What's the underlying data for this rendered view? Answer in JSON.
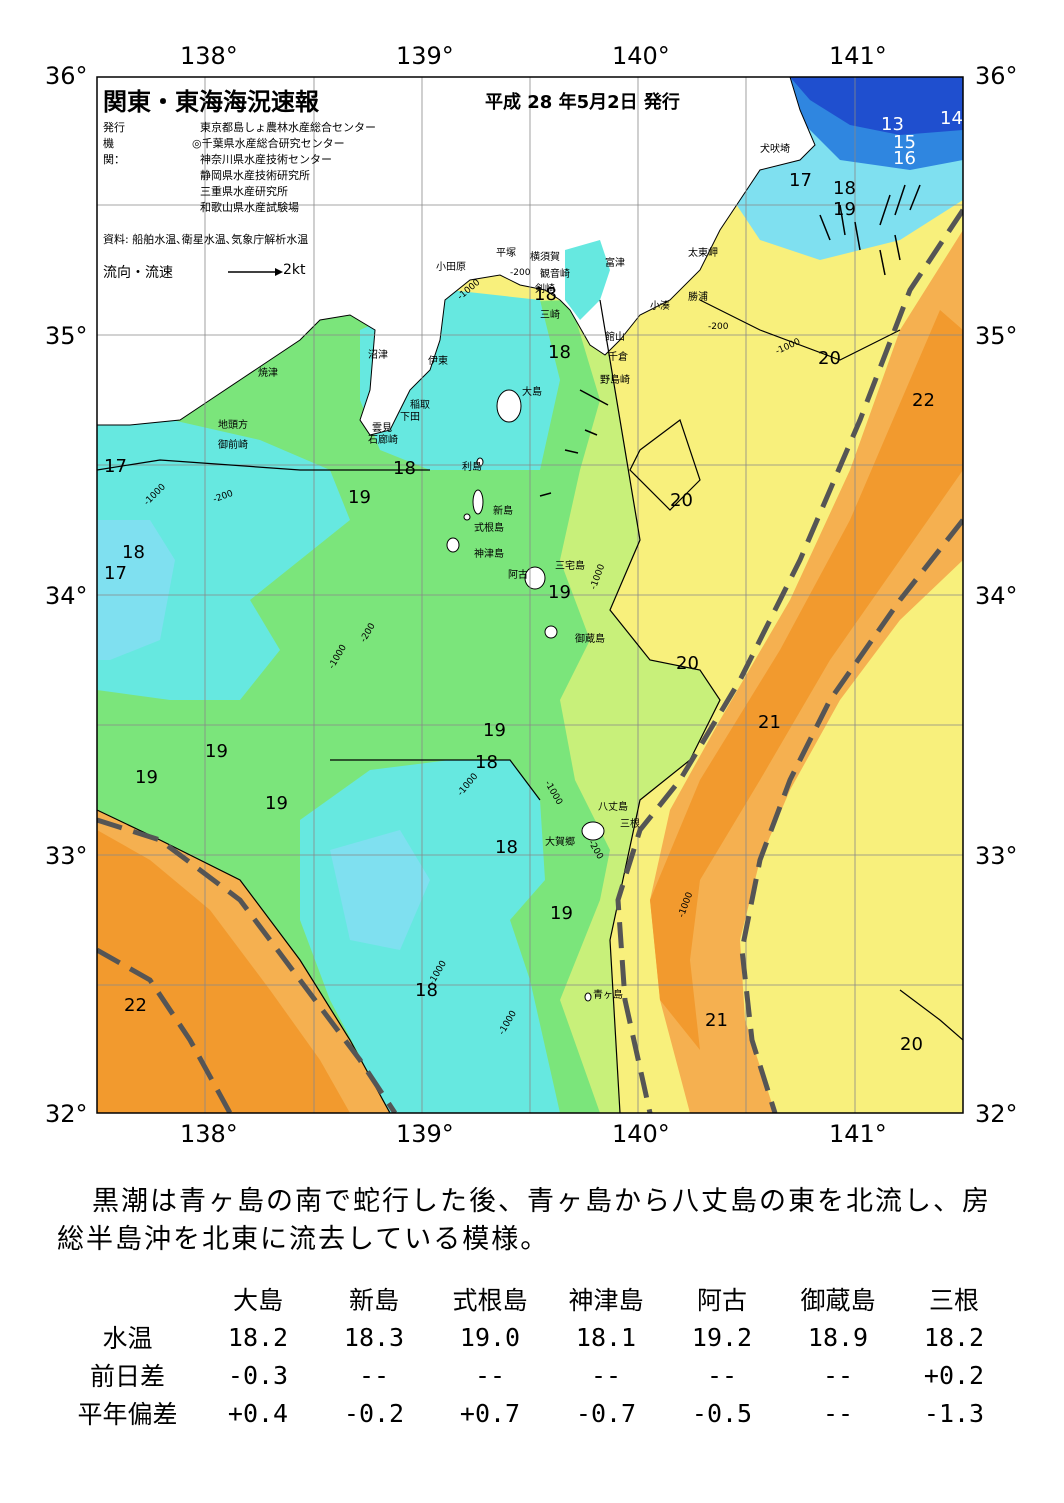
{
  "map": {
    "title": "関東・東海海況速報",
    "issue_date": "平成 28 年5月2日 発行",
    "publisher_label": "発行機関：",
    "publishers": [
      "東京都島しょ農林水産総合センター",
      "◎千葉県水産総合研究センター",
      "神奈川県水産技術センター",
      "静岡県水産技術研究所",
      "三重県水産研究所",
      "和歌山県水産試験場"
    ],
    "sources": "資料: 船舶水温､衛星水温､気象庁解析水温",
    "flow_legend_label": "流向・流速",
    "flow_legend_scale": "2kt",
    "lat_labels": [
      "36°",
      "35°",
      "34°",
      "33°",
      "32°"
    ],
    "lon_labels": [
      "138°",
      "139°",
      "140°",
      "141°"
    ],
    "place_names": [
      {
        "name": "犬吠埼"
      },
      {
        "name": "太東岬"
      },
      {
        "name": "勝浦"
      },
      {
        "name": "小湊"
      },
      {
        "name": "富津"
      },
      {
        "name": "館山"
      },
      {
        "name": "千倉"
      },
      {
        "name": "野島崎"
      },
      {
        "name": "横須賀"
      },
      {
        "name": "観音崎"
      },
      {
        "name": "剣崎"
      },
      {
        "name": "三崎"
      },
      {
        "name": "平塚"
      },
      {
        "name": "小田原"
      },
      {
        "name": "沼津"
      },
      {
        "name": "伊東"
      },
      {
        "name": "焼津"
      },
      {
        "name": "稲取"
      },
      {
        "name": "下田"
      },
      {
        "name": "雲見"
      },
      {
        "name": "石廊崎"
      },
      {
        "name": "地頭方"
      },
      {
        "name": "御前崎"
      },
      {
        "name": "大島"
      },
      {
        "name": "利島"
      },
      {
        "name": "新島"
      },
      {
        "name": "式根島"
      },
      {
        "name": "神津島"
      },
      {
        "name": "三宅島"
      },
      {
        "name": "阿古"
      },
      {
        "name": "御蔵島"
      },
      {
        "name": "八丈島"
      },
      {
        "name": "三根"
      },
      {
        "name": "大賀郷"
      },
      {
        "name": "青ヶ島"
      }
    ],
    "contour_labels": [
      "13",
      "14",
      "15",
      "16",
      "17",
      "18",
      "19",
      "17",
      "18",
      "17",
      "18",
      "19",
      "18",
      "20",
      "22",
      "20",
      "20",
      "21",
      "19",
      "18",
      "19",
      "19",
      "19",
      "18",
      "18",
      "19",
      "22",
      "18",
      "21",
      "20",
      "19"
    ],
    "depth_labels": [
      "-200",
      "-1000"
    ],
    "colors": {
      "t13": "#1f4fcf",
      "t15": "#2f86e0",
      "t17": "#7fe0f0",
      "t18": "#66e8e0",
      "t19": "#7be57b",
      "t20": "#c8f07a",
      "t21": "#f8f07c",
      "t22": "#f5b050",
      "t23": "#f29a2e",
      "land": "#ffffff",
      "kuroshio": "#555555"
    }
  },
  "summary": "黒潮は青ヶ島の南で蛇行した後、青ヶ島から八丈島の東を北流し、房総半島沖を北東に流去している模様。",
  "table": {
    "headers": [
      "大島",
      "新島",
      "式根島",
      "神津島",
      "阿古",
      "御蔵島",
      "三根"
    ],
    "rows": [
      {
        "label": "水温",
        "values": [
          "18.2",
          "18.3",
          "19.0",
          "18.1",
          "19.2",
          "18.9",
          "18.2"
        ]
      },
      {
        "label": "前日差",
        "values": [
          "-0.3",
          "--",
          "--",
          "--",
          "--",
          "--",
          "+0.2"
        ]
      },
      {
        "label": "平年偏差",
        "values": [
          "+0.4",
          "-0.2",
          "+0.7",
          "-0.7",
          "-0.5",
          "--",
          "-1.3"
        ]
      }
    ]
  }
}
